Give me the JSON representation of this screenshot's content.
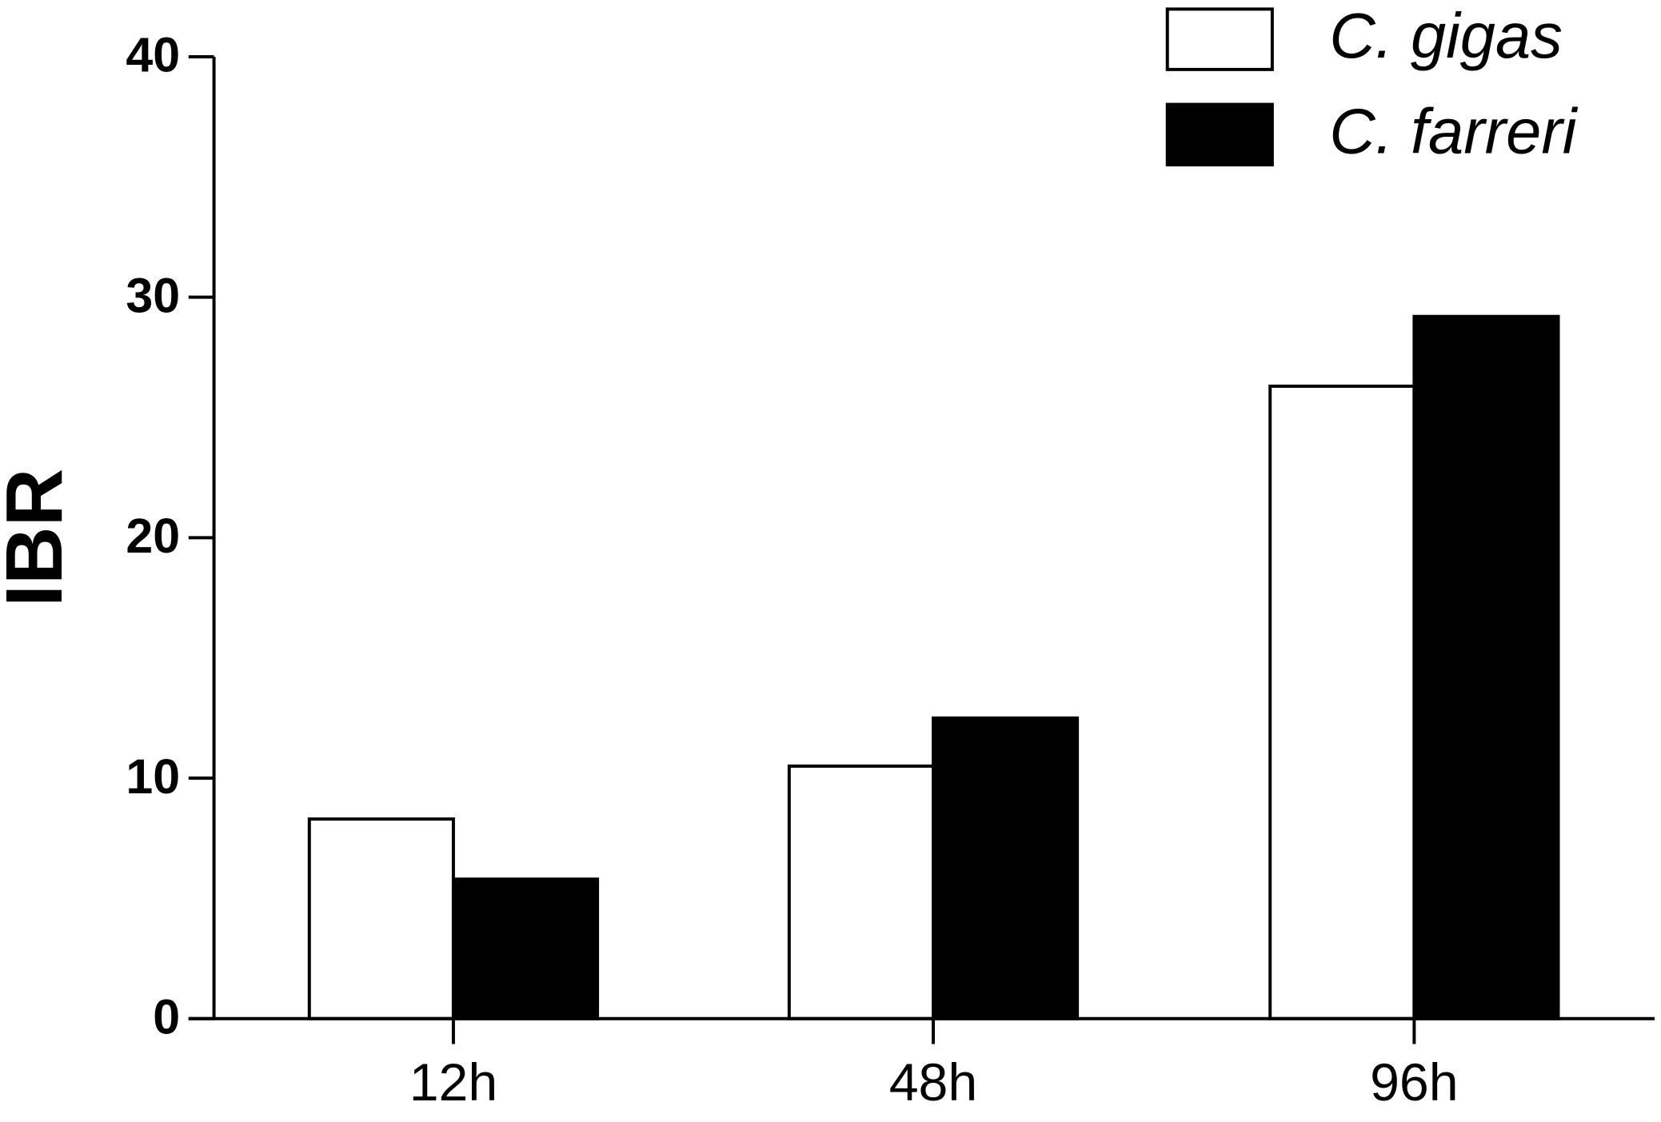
{
  "chart_data": {
    "type": "bar",
    "y_label": "IBR",
    "categories": [
      "12h",
      "48h",
      "96h"
    ],
    "series": [
      {
        "name": "C. gigas",
        "color": "#ffffff",
        "values": [
          8.3,
          10.5,
          26.3
        ]
      },
      {
        "name": "C. farreri",
        "color": "#000000",
        "values": [
          5.8,
          12.5,
          29.2
        ]
      }
    ],
    "ylim": [
      0,
      40
    ],
    "yticks": [
      0,
      10,
      20,
      30,
      40
    ],
    "grid": false,
    "legend": "top-right"
  }
}
